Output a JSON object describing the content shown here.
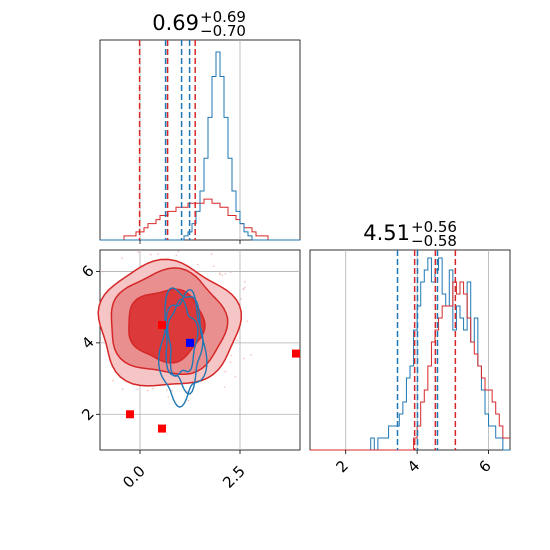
{
  "chart_data": [
    {
      "panel": "top-left",
      "type": "histogram",
      "title": {
        "value": "0.69",
        "plus": "+0.69",
        "minus": "−0.70"
      },
      "x_range": [
        -1.0,
        4.0
      ],
      "bins": {
        "start": -1.0,
        "width": 0.1
      },
      "series": [
        {
          "color": "#d62728",
          "counts": [
            0,
            0,
            0,
            0,
            0,
            0,
            1,
            1,
            1,
            2,
            2,
            3,
            4,
            4,
            5,
            6,
            6,
            7,
            7,
            8,
            8,
            8,
            9,
            9,
            9,
            9,
            10,
            10,
            9,
            9,
            8,
            8,
            6,
            6,
            5,
            4,
            3,
            3,
            2,
            1,
            1,
            1,
            0,
            0,
            0,
            0,
            0,
            0,
            0,
            0
          ],
          "quantile_lines": [
            -0.01,
            0.69,
            1.38
          ]
        },
        {
          "color": "#1f77b4",
          "counts": [
            0,
            0,
            0,
            0,
            0,
            0,
            0,
            0,
            0,
            0,
            0,
            0,
            0,
            0,
            0,
            0,
            0,
            0,
            0,
            0,
            0,
            1,
            2,
            4,
            7,
            12,
            20,
            30,
            40,
            46,
            40,
            30,
            20,
            12,
            7,
            4,
            2,
            1,
            0,
            0,
            0,
            0,
            0,
            0,
            0,
            0,
            0,
            0,
            0,
            0
          ],
          "quantile_lines": [
            0.64,
            1.04,
            1.24
          ]
        }
      ]
    },
    {
      "panel": "bottom-right",
      "type": "histogram",
      "title": {
        "value": "4.51",
        "plus": "+0.56",
        "minus": "−0.58"
      },
      "x_range": [
        1.0,
        6.6
      ],
      "x_ticks": [
        "2",
        "4",
        "6"
      ],
      "x_tick_values": [
        2,
        4,
        6
      ],
      "bins": {
        "start": 1.0,
        "width": 0.1
      },
      "series": [
        {
          "color": "#1f77b4",
          "counts": [
            0,
            0,
            0,
            0,
            0,
            0,
            0,
            0,
            0,
            0,
            0,
            0,
            0,
            0,
            0,
            0,
            0,
            1,
            0,
            1,
            1,
            1,
            2,
            2,
            2,
            3,
            4,
            6,
            7,
            10,
            12,
            14,
            15,
            16,
            14,
            15,
            16,
            13,
            12,
            15,
            10,
            12,
            11,
            10,
            14,
            9,
            11,
            7,
            5,
            3,
            2,
            2,
            1,
            1,
            0,
            0
          ],
          "quantile_lines": [
            3.45,
            4.01,
            4.57
          ]
        },
        {
          "color": "#d62728",
          "counts": [
            0,
            0,
            0,
            0,
            0,
            0,
            0,
            0,
            0,
            0,
            0,
            0,
            0,
            0,
            0,
            0,
            0,
            0,
            0,
            0,
            0,
            0,
            0,
            0,
            0,
            0,
            0,
            0,
            0,
            1,
            2,
            4,
            5,
            7,
            9,
            10,
            11,
            12,
            12,
            12,
            14,
            13,
            14,
            13,
            11,
            9,
            8,
            7,
            6,
            5,
            5,
            4,
            3,
            2,
            1,
            1
          ],
          "quantile_lines": [
            3.93,
            4.51,
            5.07
          ]
        }
      ]
    },
    {
      "panel": "bottom-left",
      "type": "scatter",
      "x_range": [
        -1.0,
        4.0
      ],
      "y_range": [
        1.0,
        6.6
      ],
      "x_ticks": [
        "0.0",
        "2.5"
      ],
      "x_tick_values": [
        0.0,
        2.5
      ],
      "y_ticks": [
        "2",
        "4",
        "6"
      ],
      "y_tick_values": [
        2,
        4,
        6
      ],
      "markers": [
        {
          "x": -0.25,
          "y": 2.0,
          "color": "#ff0000"
        },
        {
          "x": 0.55,
          "y": 1.6,
          "color": "#ff0000"
        },
        {
          "x": 4.0,
          "y": 3.7,
          "color": "#ff0000"
        },
        {
          "x": 0.55,
          "y": 4.5,
          "color": "#ff0000"
        },
        {
          "x": 1.25,
          "y": 4.0,
          "color": "#0000ff"
        }
      ],
      "red_contour_levels": [
        {
          "cx": 0.7,
          "cy": 4.5,
          "rx": 1.75,
          "ry": 1.75,
          "color": "#f6c6c6"
        },
        {
          "cx": 0.7,
          "cy": 4.55,
          "rx": 1.45,
          "ry": 1.45,
          "color": "#ea8f8f"
        },
        {
          "cx": 0.65,
          "cy": 4.5,
          "rx": 0.95,
          "ry": 1.0,
          "color": "#dc3a3a"
        }
      ],
      "blue_contours": [
        {
          "cx": 1.05,
          "cy": 4.1,
          "rx": 0.35,
          "ry": 1.0
        },
        {
          "cx": 1.1,
          "cy": 4.05,
          "rx": 0.45,
          "ry": 1.3
        },
        {
          "cx": 1.05,
          "cy": 3.9,
          "rx": 0.55,
          "ry": 1.55
        }
      ]
    }
  ]
}
